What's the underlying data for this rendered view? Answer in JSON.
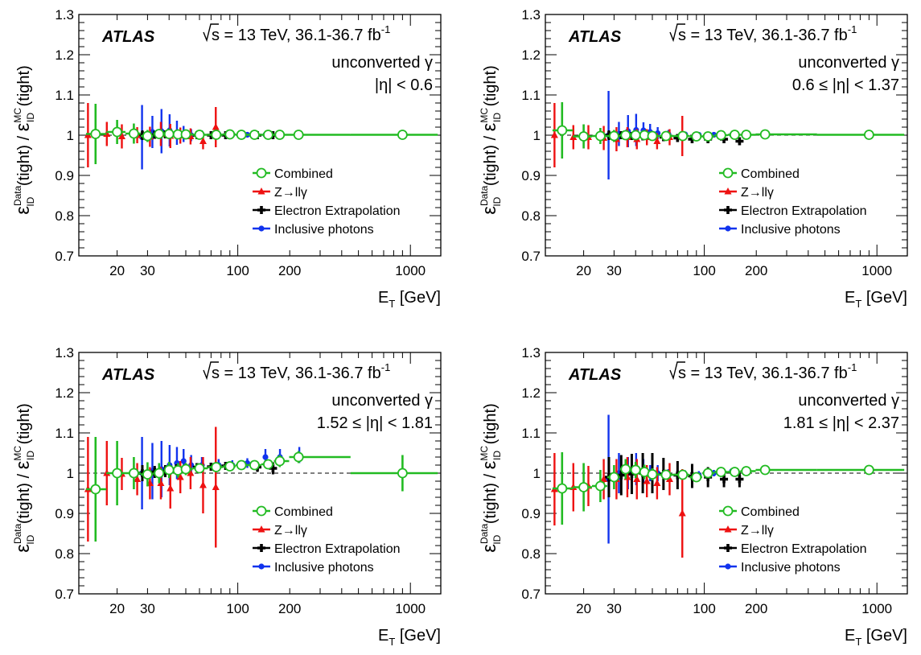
{
  "figure": {
    "experiment": "ATLAS",
    "energy_label": "s = 13 TeV, 36.1-36.7 fb",
    "energy_sup": "-1",
    "x_axis_label_main": "E",
    "x_axis_label_sub": "T",
    "x_axis_label_unit": " [GeV]",
    "y_axis_label_parts": {
      "eps": "ε",
      "sub": "ID",
      "data_sup": "Data",
      "mc_sup": "MC",
      "tight": "(tight)",
      "slash": "/"
    },
    "legend": [
      {
        "label": "Combined",
        "color": "#22bb22",
        "marker": "open-circle"
      },
      {
        "label": "Z→llγ",
        "color": "#ee1111",
        "marker": "triangle"
      },
      {
        "label": "Electron Extrapolation",
        "color": "#000000",
        "marker": "cross"
      },
      {
        "label": "Inclusive photons",
        "color": "#1133ee",
        "marker": "circle"
      }
    ]
  },
  "chart_data": [
    {
      "type": "scatter",
      "xscale": "log",
      "xlim": [
        12,
        1500
      ],
      "ylim": [
        0.7,
        1.3
      ],
      "x_ticks": [
        20,
        30,
        100,
        200,
        1000
      ],
      "y_ticks": [
        0.7,
        0.8,
        0.9,
        1.0,
        1.1,
        1.2,
        1.3
      ],
      "y_tick_labels": [
        "0.7",
        "0.8",
        "0.9",
        "1",
        "1.1",
        "1.2",
        "1.3"
      ],
      "reference_line": 1.0,
      "grid": false,
      "legend_position": "bottom-right",
      "region_label": "unconverted γ",
      "eta_label": "|η| < 0.6",
      "series": [
        {
          "name": "Combined",
          "x": [
            15,
            20,
            25,
            30,
            35,
            40,
            45,
            50,
            60,
            75,
            90,
            105,
            125,
            150,
            175,
            225,
            900
          ],
          "y": [
            1.003,
            1.008,
            1.004,
            0.998,
            1.003,
            1.003,
            1.002,
            1.002,
            1.001,
            1.001,
            1.002,
            1.001,
            1.001,
            1.001,
            1.001,
            1.001,
            1.001
          ],
          "err": [
            0.075,
            0.03,
            0.025,
            0.015,
            0.012,
            0.01,
            0.009,
            0.008,
            0.006,
            0.005,
            0.004,
            0.003,
            0.003,
            0.003,
            0.003,
            0.002,
            0.002
          ]
        },
        {
          "name": "Z→llγ",
          "x": [
            14,
            18,
            22,
            27,
            32,
            37,
            42,
            48,
            55,
            65,
            77
          ],
          "y": [
            1.0,
            1.003,
            0.997,
            1.0,
            0.996,
            1.003,
            0.998,
            0.999,
            0.997,
            0.985,
            1.02
          ],
          "err": [
            0.08,
            0.03,
            0.03,
            0.02,
            0.025,
            0.03,
            0.03,
            0.02,
            0.02,
            0.02,
            0.05
          ]
        },
        {
          "name": "Electron Extrapolation",
          "x": [
            28,
            33,
            38,
            44,
            50,
            58,
            70,
            85,
            105,
            130,
            160
          ],
          "y": [
            1.0,
            1.001,
            1.002,
            1.001,
            1.0,
            1.0,
            1.0,
            1.0,
            1.001,
            1.0,
            1.0
          ],
          "err": [
            0.012,
            0.01,
            0.008,
            0.007,
            0.006,
            0.006,
            0.005,
            0.005,
            0.004,
            0.004,
            0.004
          ]
        },
        {
          "name": "Inclusive photons",
          "x": [
            27,
            31,
            35,
            39,
            43,
            47,
            52,
            60,
            75,
            90,
            110,
            140,
            170,
            220
          ],
          "y": [
            0.995,
            1.008,
            1.01,
            1.012,
            1.006,
            1.003,
            1.0,
            1.002,
            1.002,
            1.001,
            1.001,
            1.001,
            1.001,
            1.001
          ],
          "err": [
            0.08,
            0.04,
            0.055,
            0.04,
            0.03,
            0.02,
            0.015,
            0.01,
            0.006,
            0.005,
            0.004,
            0.003,
            0.003,
            0.003
          ]
        }
      ]
    },
    {
      "type": "scatter",
      "xscale": "log",
      "xlim": [
        12,
        1500
      ],
      "ylim": [
        0.7,
        1.3
      ],
      "x_ticks": [
        20,
        30,
        100,
        200,
        1000
      ],
      "y_ticks": [
        0.7,
        0.8,
        0.9,
        1.0,
        1.1,
        1.2,
        1.3
      ],
      "y_tick_labels": [
        "0.7",
        "0.8",
        "0.9",
        "1",
        "1.1",
        "1.2",
        "1.3"
      ],
      "reference_line": 1.0,
      "grid": false,
      "legend_position": "bottom-right",
      "region_label": "unconverted γ",
      "eta_label": "0.6 ≤ |η| < 1.37",
      "series": [
        {
          "name": "Combined",
          "x": [
            15,
            20,
            25,
            30,
            35,
            40,
            45,
            50,
            60,
            75,
            90,
            105,
            125,
            150,
            175,
            225,
            900
          ],
          "y": [
            1.012,
            0.997,
            0.998,
            0.998,
            1.0,
            1.0,
            1.0,
            0.998,
            0.998,
            0.998,
            0.997,
            0.997,
            1.0,
            1.001,
            1.001,
            1.002,
            1.001
          ],
          "err": [
            0.07,
            0.03,
            0.02,
            0.015,
            0.012,
            0.01,
            0.009,
            0.008,
            0.006,
            0.005,
            0.004,
            0.003,
            0.003,
            0.003,
            0.003,
            0.002,
            0.002
          ]
        },
        {
          "name": "Z→llγ",
          "x": [
            14,
            18,
            22,
            27,
            32,
            37,
            42,
            48,
            55,
            65,
            77
          ],
          "y": [
            1.0,
            0.995,
            0.995,
            0.993,
            0.99,
            0.995,
            0.99,
            0.995,
            0.985,
            0.995,
            0.998
          ],
          "err": [
            0.08,
            0.03,
            0.03,
            0.03,
            0.03,
            0.025,
            0.025,
            0.02,
            0.02,
            0.02,
            0.05
          ]
        },
        {
          "name": "Electron Extrapolation",
          "x": [
            28,
            33,
            38,
            44,
            50,
            58,
            70,
            85,
            105,
            130,
            160
          ],
          "y": [
            1.0,
            1.0,
            0.998,
            0.997,
            0.996,
            0.995,
            0.993,
            0.99,
            0.99,
            0.99,
            0.985
          ],
          "err": [
            0.012,
            0.01,
            0.01,
            0.009,
            0.009,
            0.008,
            0.008,
            0.008,
            0.008,
            0.008,
            0.01
          ]
        },
        {
          "name": "Inclusive photons",
          "x": [
            27,
            31,
            35,
            39,
            43,
            47,
            52,
            60,
            75,
            90,
            110,
            140,
            170,
            220
          ],
          "y": [
            1.0,
            1.003,
            1.01,
            1.013,
            1.012,
            1.008,
            1.005,
            1.003,
            1.002,
            1.001,
            1.001,
            1.001,
            1.001,
            1.001
          ],
          "err": [
            0.11,
            0.03,
            0.04,
            0.04,
            0.02,
            0.02,
            0.015,
            0.01,
            0.006,
            0.005,
            0.004,
            0.003,
            0.003,
            0.003
          ]
        }
      ]
    },
    {
      "type": "scatter",
      "xscale": "log",
      "xlim": [
        12,
        1500
      ],
      "ylim": [
        0.7,
        1.3
      ],
      "x_ticks": [
        20,
        30,
        100,
        200,
        1000
      ],
      "y_ticks": [
        0.7,
        0.8,
        0.9,
        1.0,
        1.1,
        1.2,
        1.3
      ],
      "y_tick_labels": [
        "0.7",
        "0.8",
        "0.9",
        "1",
        "1.1",
        "1.2",
        "1.3"
      ],
      "reference_line": 1.0,
      "grid": false,
      "legend_position": "bottom-right",
      "region_label": "unconverted γ",
      "eta_label": "1.52 ≤ |η| < 1.81",
      "series": [
        {
          "name": "Combined",
          "x": [
            15,
            20,
            25,
            30,
            35,
            40,
            45,
            50,
            60,
            75,
            90,
            105,
            125,
            150,
            175,
            225,
            900
          ],
          "y": [
            0.96,
            1.0,
            1.0,
            0.997,
            1.0,
            1.008,
            1.007,
            1.01,
            1.012,
            1.015,
            1.017,
            1.02,
            1.02,
            1.022,
            1.03,
            1.04,
            1.0
          ],
          "err": [
            0.13,
            0.08,
            0.04,
            0.03,
            0.025,
            0.02,
            0.018,
            0.015,
            0.01,
            0.008,
            0.007,
            0.006,
            0.008,
            0.01,
            0.015,
            0.015,
            0.045
          ]
        },
        {
          "name": "Z→llγ",
          "x": [
            14,
            18,
            22,
            27,
            32,
            37,
            42,
            48,
            55,
            65,
            77
          ],
          "y": [
            0.96,
            1.0,
            0.998,
            0.985,
            0.975,
            0.975,
            0.962,
            0.99,
            1.0,
            0.97,
            0.965
          ],
          "err": [
            0.13,
            0.08,
            0.04,
            0.04,
            0.04,
            0.04,
            0.05,
            0.04,
            0.04,
            0.07,
            0.15
          ]
        },
        {
          "name": "Electron Extrapolation",
          "x": [
            28,
            33,
            38,
            44,
            50,
            58,
            70,
            85,
            105,
            130,
            160
          ],
          "y": [
            1.0,
            1.003,
            1.005,
            1.01,
            1.012,
            1.015,
            1.016,
            1.018,
            1.02,
            1.015,
            1.012
          ],
          "err": [
            0.02,
            0.015,
            0.015,
            0.012,
            0.012,
            0.01,
            0.01,
            0.01,
            0.01,
            0.012,
            0.015
          ]
        },
        {
          "name": "Inclusive photons",
          "x": [
            27,
            31,
            35,
            39,
            43,
            47,
            52,
            60,
            75,
            90,
            110,
            140,
            170,
            220
          ],
          "y": [
            1.0,
            1.005,
            1.01,
            1.02,
            1.025,
            1.03,
            1.02,
            1.02,
            1.02,
            1.02,
            1.025,
            1.04,
            1.04,
            1.045
          ],
          "err": [
            0.09,
            0.07,
            0.07,
            0.05,
            0.04,
            0.03,
            0.025,
            0.02,
            0.015,
            0.012,
            0.012,
            0.02,
            0.02,
            0.02
          ]
        }
      ]
    },
    {
      "type": "scatter",
      "xscale": "log",
      "xlim": [
        12,
        1500
      ],
      "ylim": [
        0.7,
        1.3
      ],
      "x_ticks": [
        20,
        30,
        100,
        200,
        1000
      ],
      "y_ticks": [
        0.7,
        0.8,
        0.9,
        1.0,
        1.1,
        1.2,
        1.3
      ],
      "y_tick_labels": [
        "0.7",
        "0.8",
        "0.9",
        "1",
        "1.1",
        "1.2",
        "1.3"
      ],
      "reference_line": 1.0,
      "grid": false,
      "legend_position": "bottom-right",
      "region_label": "unconverted γ",
      "eta_label": "1.81 ≤ |η| < 2.37",
      "series": [
        {
          "name": "Combined",
          "x": [
            15,
            20,
            25,
            30,
            35,
            40,
            45,
            50,
            60,
            75,
            90,
            105,
            125,
            150,
            175,
            225,
            900
          ],
          "y": [
            0.962,
            0.965,
            0.968,
            0.99,
            1.01,
            1.008,
            1.003,
            0.997,
            0.996,
            0.996,
            0.99,
            1.0,
            1.003,
            1.003,
            1.005,
            1.008,
            1.008
          ],
          "err": [
            0.09,
            0.06,
            0.04,
            0.03,
            0.025,
            0.02,
            0.018,
            0.015,
            0.012,
            0.01,
            0.008,
            0.007,
            0.006,
            0.005,
            0.005,
            0.004,
            0.004
          ]
        },
        {
          "name": "Z→llγ",
          "x": [
            14,
            18,
            22,
            27,
            32,
            37,
            42,
            48,
            55,
            65,
            77
          ],
          "y": [
            0.96,
            0.965,
            0.968,
            0.985,
            0.985,
            0.99,
            0.985,
            0.98,
            0.975,
            0.985,
            0.9
          ],
          "err": [
            0.09,
            0.06,
            0.05,
            0.05,
            0.05,
            0.05,
            0.05,
            0.04,
            0.04,
            0.04,
            0.11
          ]
        },
        {
          "name": "Electron Extrapolation",
          "x": [
            28,
            33,
            38,
            44,
            50,
            58,
            70,
            85,
            105,
            130,
            160
          ],
          "y": [
            0.99,
            0.995,
            0.998,
            1.0,
            1.0,
            0.998,
            0.995,
            0.993,
            0.99,
            0.985,
            0.985
          ],
          "err": [
            0.05,
            0.05,
            0.05,
            0.05,
            0.05,
            0.04,
            0.035,
            0.03,
            0.025,
            0.02,
            0.02
          ]
        },
        {
          "name": "Inclusive photons",
          "x": [
            27,
            31,
            35,
            39,
            43,
            47,
            52,
            60,
            75,
            90,
            110,
            140,
            170,
            220
          ],
          "y": [
            0.985,
            1.0,
            1.0,
            1.01,
            1.005,
            1.0,
            1.0,
            0.995,
            0.997,
            0.995,
            1.0,
            1.005,
            1.005,
            1.008
          ],
          "err": [
            0.16,
            0.05,
            0.04,
            0.04,
            0.03,
            0.02,
            0.02,
            0.015,
            0.01,
            0.01,
            0.008,
            0.006,
            0.006,
            0.005
          ]
        }
      ]
    }
  ]
}
